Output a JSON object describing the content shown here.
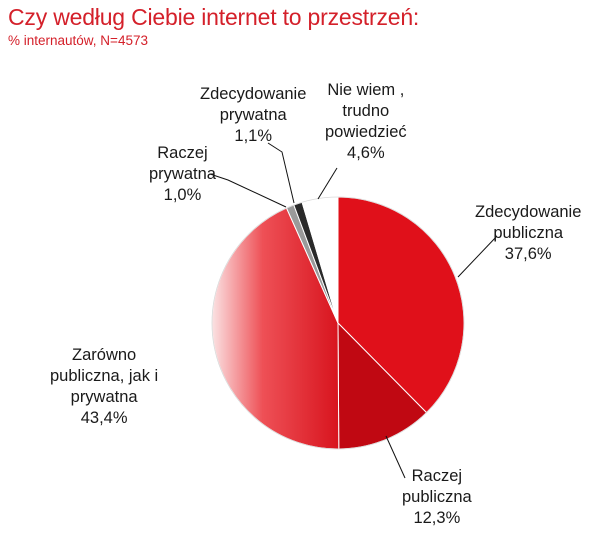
{
  "title": "Czy według Ciebie internet to przestrzeń:",
  "subtitle": "% internautów, N=4573",
  "chart_data": {
    "type": "pie",
    "slices": [
      {
        "label_lines": [
          "Zdecydowanie",
          "publiczna"
        ],
        "value": 37.6,
        "value_label": "37,6%",
        "color": "#e0101a"
      },
      {
        "label_lines": [
          "Raczej",
          "publiczna"
        ],
        "value": 12.3,
        "value_label": "12,3%",
        "color": "#c00812"
      },
      {
        "label_lines": [
          "Zarówno",
          "publiczna, jak i",
          "prywatna"
        ],
        "value": 43.4,
        "value_label": "43,4%",
        "color": "#e8343c"
      },
      {
        "label_lines": [
          "Raczej",
          "prywatna"
        ],
        "value": 1.0,
        "value_label": "1,0%",
        "color": "#9a9a9a"
      },
      {
        "label_lines": [
          "Zdecydowanie",
          "prywatna"
        ],
        "value": 1.1,
        "value_label": "1,1%",
        "color": "#2a2a2a"
      },
      {
        "label_lines": [
          "Nie wiem ,",
          "trudno",
          "powiedzieć"
        ],
        "value": 4.6,
        "value_label": "4,6%",
        "color": "#ffffff"
      }
    ]
  }
}
